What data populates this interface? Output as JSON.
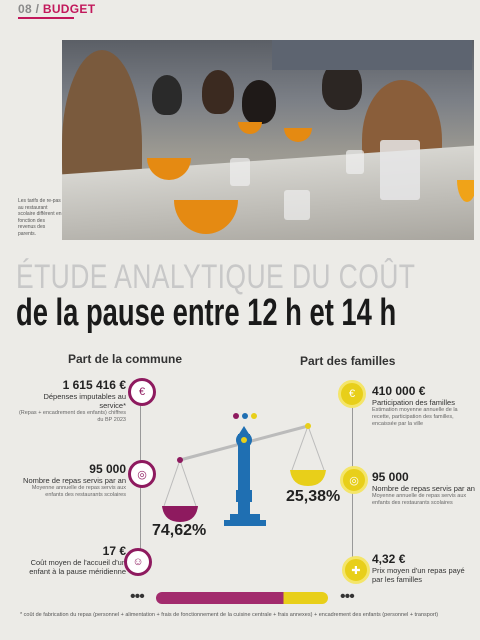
{
  "header": {
    "page_num": "08",
    "separator": " / ",
    "section": "BUDGET"
  },
  "photo_caption": "Les tarifs de re-pas au restaurant scolaire diffèrent en fonction des revenus des parents.",
  "title": {
    "line1": "ÉTUDE ANALYTIQUE DU COÛT",
    "line2": "de la pause entre 12 h et 14 h"
  },
  "commune": {
    "heading": "Part de la commune",
    "expenses": {
      "value": "1 615 416 €",
      "label": "Dépenses imputables au service*",
      "note": "(Repas + encadrement des enfants) chiffres du BP 2023"
    },
    "meals": {
      "value": "95 000",
      "label": "Nombre de repas servis par an",
      "note": "Moyenne annuelle de repas servis aux enfants des restaurants scolaires"
    },
    "cost": {
      "value": "17 €",
      "label": "Coût moyen de l'accueil d'un enfant à la pause méridienne"
    },
    "percent": "74,62%"
  },
  "familles": {
    "heading": "Part des familles",
    "participation": {
      "value": "410 000 €",
      "label": "Participation des familles",
      "note": "Estimation moyenne annuelle de la recette, participation des familles, encaissée par la ville"
    },
    "meals": {
      "value": "95 000",
      "label": "Nombre de repas servis par an",
      "note": "Moyenne annuelle de repas servis aux enfants des restaurants scolaires"
    },
    "price": {
      "value": "4,32 €",
      "label": "Prix moyen d'un repas payé par les familles"
    },
    "percent": "25,38%"
  },
  "dots": "•••",
  "footnote": "* coût de fabrication du repas (personnel + alimentation + frais de fonctionnement de la cuisine centrale + frais annexes) + encadrement des enfants (personnel + transport)",
  "colors": {
    "magenta": "#8e1a5f",
    "yellow": "#e8cf1a",
    "blue": "#1f6fb2"
  },
  "icons": {
    "commune": [
      "euro-icon",
      "plate-icon",
      "child-icon"
    ],
    "familles": [
      "euro-icon",
      "plate-icon",
      "meal-icon"
    ]
  }
}
